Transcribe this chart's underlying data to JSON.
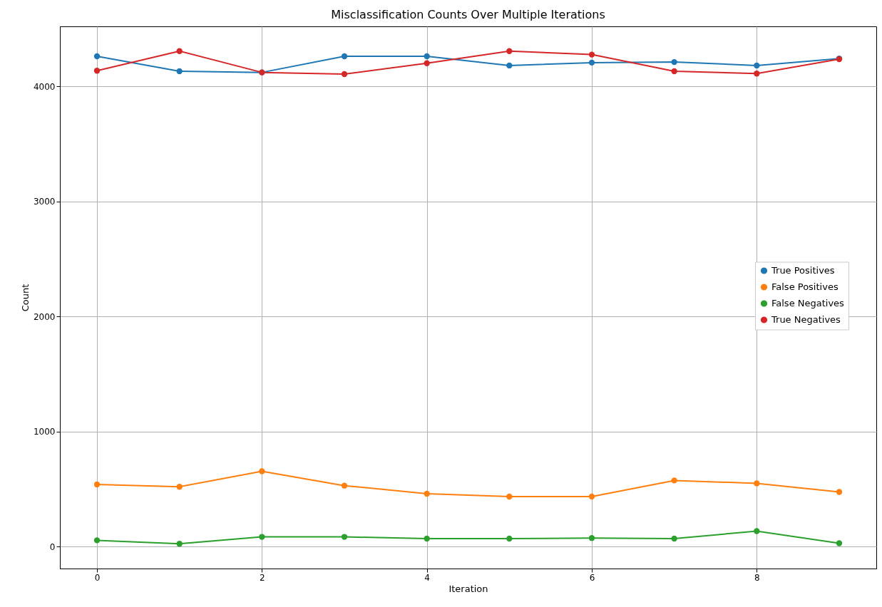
{
  "chart_data": {
    "type": "line",
    "title": "Misclassification Counts Over Multiple Iterations",
    "xlabel": "Iteration",
    "ylabel": "Count",
    "x": [
      0,
      1,
      2,
      3,
      4,
      5,
      6,
      7,
      8,
      9
    ],
    "series": [
      {
        "name": "True Positives",
        "color": "#1f77b4",
        "values": [
          4260,
          4130,
          4120,
          4260,
          4260,
          4180,
          4205,
          4210,
          4180,
          4240
        ]
      },
      {
        "name": "False Positives",
        "color": "#ff7f0e",
        "values": [
          540,
          520,
          655,
          530,
          460,
          435,
          435,
          575,
          550,
          475
        ]
      },
      {
        "name": "False Negatives",
        "color": "#2ca02c",
        "values": [
          55,
          25,
          85,
          85,
          70,
          70,
          75,
          70,
          135,
          30
        ]
      },
      {
        "name": "True Negatives",
        "color": "#d62728",
        "values": [
          4135,
          4305,
          4120,
          4105,
          4200,
          4305,
          4275,
          4130,
          4110,
          4235
        ]
      }
    ],
    "xlim": [
      -0.45,
      9.45
    ],
    "xticks": [
      0,
      2,
      4,
      6,
      8
    ],
    "ylim": [
      -190,
      4520
    ],
    "yticks": [
      0,
      1000,
      2000,
      3000,
      4000
    ],
    "grid": true,
    "legend": "center right",
    "marker": "circle",
    "line_style": "solid"
  }
}
